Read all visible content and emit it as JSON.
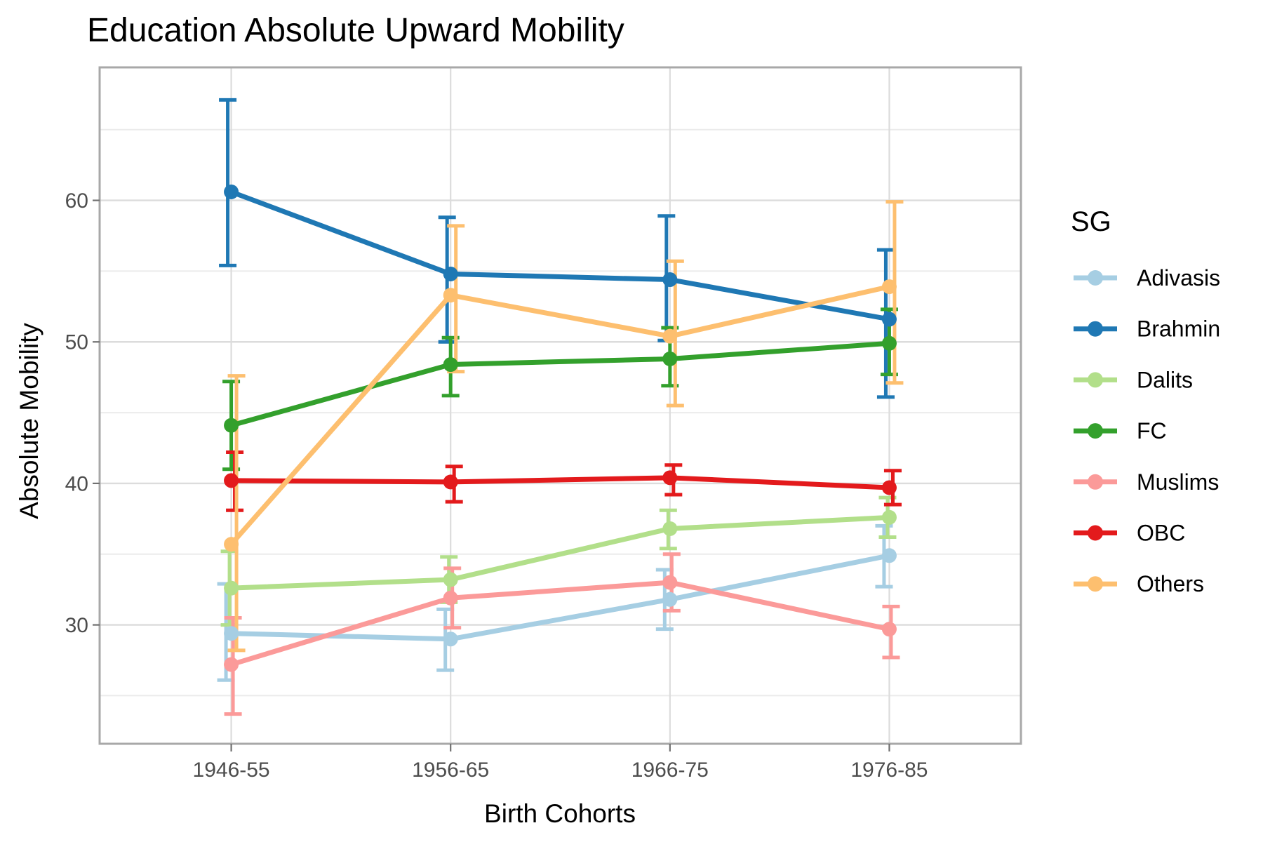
{
  "chart_data": {
    "type": "line",
    "title": "Education Absolute Upward Mobility",
    "xlabel": "Birth Cohorts",
    "ylabel": "Absolute Mobility",
    "legend_title": "SG",
    "legend_position": "right",
    "grid": "on",
    "error_bars": true,
    "categories": [
      "1946-55",
      "1956-65",
      "1966-75",
      "1976-85"
    ],
    "y_ticks": [
      30,
      40,
      50,
      60
    ],
    "y_minor_ticks": [
      25,
      35,
      45,
      55,
      65
    ],
    "ylim": [
      21.6,
      69.4
    ],
    "series": [
      {
        "name": "Adivasis",
        "color": "#a6cee3",
        "values": [
          29.4,
          29.0,
          31.8,
          34.9
        ],
        "lower": [
          26.1,
          26.8,
          29.7,
          32.7
        ],
        "upper": [
          32.9,
          31.1,
          33.9,
          37.0
        ]
      },
      {
        "name": "Brahmin",
        "color": "#1f78b4",
        "values": [
          60.6,
          54.8,
          54.4,
          51.6
        ],
        "lower": [
          55.4,
          50.0,
          50.1,
          46.1
        ],
        "upper": [
          67.1,
          58.8,
          58.9,
          56.5
        ]
      },
      {
        "name": "Dalits",
        "color": "#b2df8a",
        "values": [
          32.6,
          33.2,
          36.8,
          37.6
        ],
        "lower": [
          30.0,
          31.6,
          35.4,
          36.2
        ],
        "upper": [
          35.2,
          34.8,
          38.1,
          39.0
        ]
      },
      {
        "name": "FC",
        "color": "#33a02c",
        "values": [
          44.1,
          48.4,
          48.8,
          49.9
        ],
        "lower": [
          41.0,
          46.2,
          46.9,
          47.7
        ],
        "upper": [
          47.2,
          50.3,
          51.0,
          52.3
        ]
      },
      {
        "name": "Muslims",
        "color": "#fb9a99",
        "values": [
          27.2,
          31.9,
          33.0,
          29.7
        ],
        "lower": [
          23.7,
          29.8,
          31.0,
          27.7
        ],
        "upper": [
          30.5,
          34.0,
          35.0,
          31.3
        ]
      },
      {
        "name": "OBC",
        "color": "#e31a1c",
        "values": [
          40.2,
          40.1,
          40.4,
          39.7
        ],
        "lower": [
          38.1,
          38.7,
          39.2,
          38.5
        ],
        "upper": [
          42.2,
          41.2,
          41.3,
          40.9
        ]
      },
      {
        "name": "Others",
        "color": "#fdbf6f",
        "values": [
          35.7,
          53.3,
          50.4,
          53.9
        ],
        "lower": [
          28.2,
          47.9,
          45.5,
          47.1
        ],
        "upper": [
          47.6,
          58.2,
          55.7,
          59.9
        ]
      }
    ]
  },
  "styles": {
    "background": "#ffffff",
    "grid_major": "#dcdcdc",
    "grid_minor": "#ebebeb",
    "panel_border": "#a8a8a8",
    "tick_mark": "#707070",
    "axis_text_color": "#4d4d4d",
    "text_color": "#000000"
  }
}
